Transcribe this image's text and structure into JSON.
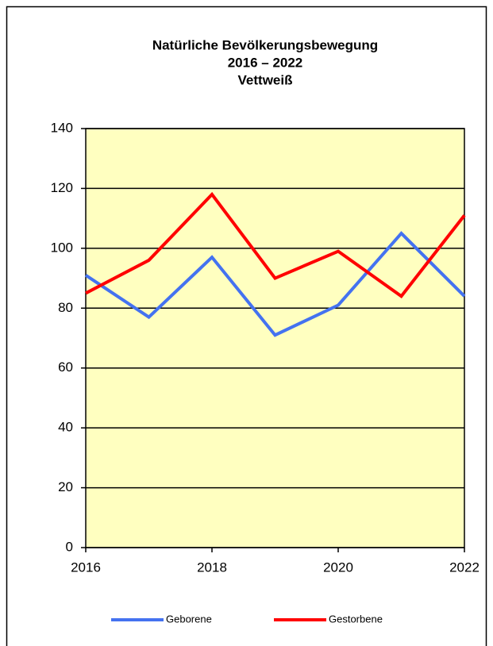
{
  "chart_data": {
    "type": "line",
    "title": [
      "Natürliche Bevölkerungsbewegung",
      "2016 – 2022",
      "Vettweiß"
    ],
    "x": [
      2016,
      2017,
      2018,
      2019,
      2020,
      2021,
      2022
    ],
    "series": [
      {
        "name": "Geborene",
        "color": "#4472f0",
        "values": [
          91,
          77,
          97,
          71,
          81,
          105,
          84
        ]
      },
      {
        "name": "Gestorbene",
        "color": "#ff0000",
        "values": [
          85,
          96,
          118,
          90,
          99,
          84,
          111
        ]
      }
    ],
    "xlim": [
      2016,
      2022
    ],
    "xticks": [
      2016,
      2018,
      2020,
      2022
    ],
    "ylim": [
      0,
      140
    ],
    "yticks": [
      0,
      20,
      40,
      60,
      80,
      100,
      120,
      140
    ],
    "grid": true,
    "legend": "bottom",
    "plot_background": "#ffffc0"
  }
}
